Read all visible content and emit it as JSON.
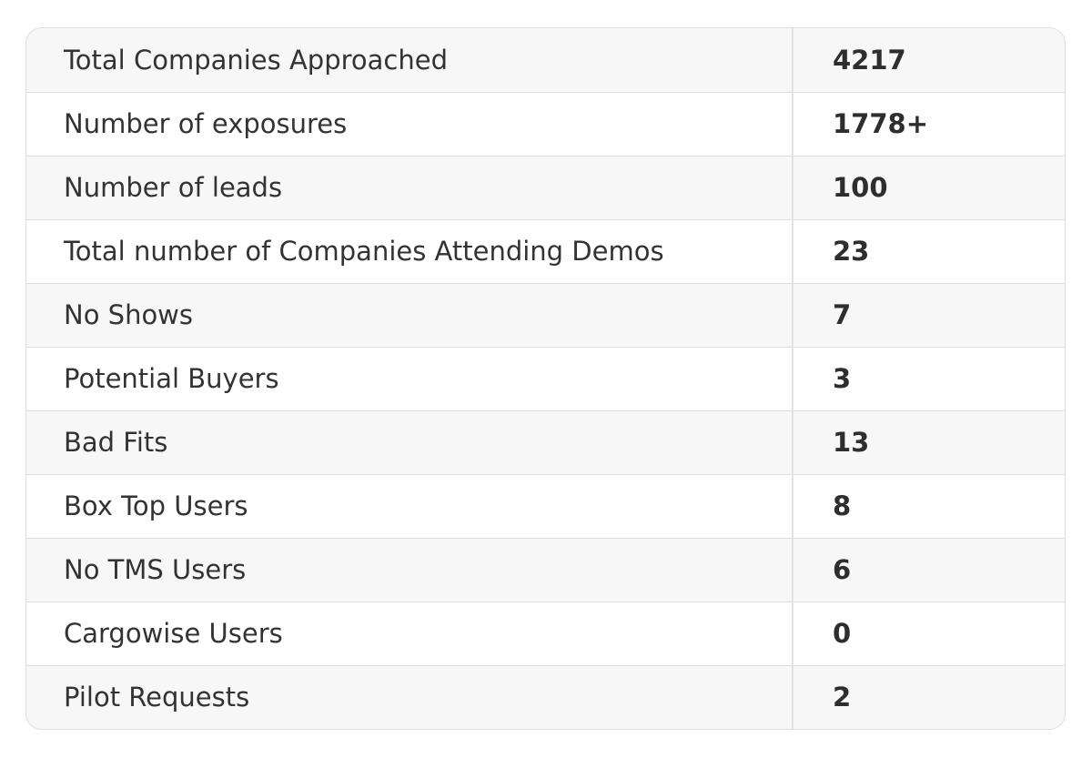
{
  "table": {
    "rows": [
      {
        "label": "Total Companies Approached",
        "value": "4217"
      },
      {
        "label": "Number of exposures",
        "value": "1778+"
      },
      {
        "label": "Number of leads",
        "value": "100"
      },
      {
        "label": "Total number of Companies Attending Demos",
        "value": "23"
      },
      {
        "label": "No Shows",
        "value": "7"
      },
      {
        "label": "Potential Buyers",
        "value": "3"
      },
      {
        "label": "Bad Fits",
        "value": "13"
      },
      {
        "label": "Box Top Users",
        "value": "8"
      },
      {
        "label": "No TMS Users",
        "value": "6"
      },
      {
        "label": "Cargowise Users",
        "value": "0"
      },
      {
        "label": "Pilot Requests",
        "value": "2"
      }
    ]
  }
}
